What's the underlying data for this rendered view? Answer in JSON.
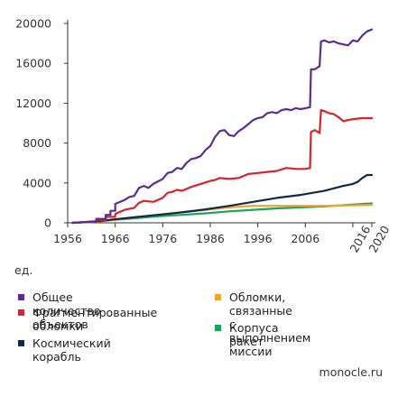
{
  "unit_label": "ед.",
  "source": "monocle.ru",
  "chart_data": {
    "type": "line",
    "ylim": [
      0,
      20000
    ],
    "xlim": [
      1956,
      2021
    ],
    "y_ticks": [
      0,
      4000,
      8000,
      12000,
      16000,
      20000
    ],
    "x_ticks": [
      1956,
      1966,
      1976,
      1986,
      1996,
      2006,
      2016,
      2020
    ],
    "x_tick_labels": [
      "1956",
      "1966",
      "1976",
      "1986",
      "1996",
      "2006",
      "2016",
      "2020"
    ],
    "rotated_x_ticks": [
      "2016",
      "2020"
    ],
    "grid": false,
    "legend": "bottom",
    "series": [
      {
        "name": "Общее количество объектов",
        "color": "#5b2d90",
        "x": [
          1957,
          1961,
          1962,
          1962,
          1964,
          1964,
          1965,
          1965,
          1966,
          1966,
          1968,
          1969,
          1970,
          1971,
          1972,
          1973,
          1974,
          1976,
          1977,
          1978,
          1979,
          1980,
          1981,
          1982,
          1983,
          1984,
          1985,
          1986,
          1987,
          1988,
          1989,
          1990,
          1991,
          1992,
          1993,
          1994,
          1995,
          1996,
          1997,
          1998,
          1999,
          2000,
          2001,
          2002,
          2003,
          2004,
          2005,
          2006,
          2007,
          2007.2,
          2008,
          2009,
          2009.3,
          2010,
          2011,
          2012,
          2013,
          2014,
          2015,
          2016,
          2017,
          2018,
          2019,
          2020
        ],
        "y": [
          0,
          100,
          100,
          400,
          400,
          800,
          800,
          1200,
          1200,
          1900,
          2300,
          2600,
          2700,
          3500,
          3700,
          3500,
          3900,
          4400,
          5000,
          5100,
          5500,
          5400,
          6000,
          6400,
          6500,
          6700,
          7300,
          7700,
          8600,
          9200,
          9300,
          8800,
          8700,
          9200,
          9500,
          9900,
          10300,
          10500,
          10600,
          11000,
          11100,
          11000,
          11300,
          11400,
          11300,
          11500,
          11400,
          11500,
          11600,
          15400,
          15400,
          15700,
          18200,
          18300,
          18100,
          18200,
          18000,
          17900,
          17800,
          18300,
          18200,
          18800,
          19200,
          19400
        ]
      },
      {
        "name": "Фрагментированные обломки",
        "color": "#d8232a",
        "x": [
          1957,
          1961,
          1962,
          1962,
          1964,
          1964,
          1966,
          1966,
          1968,
          1970,
          1971,
          1972,
          1974,
          1976,
          1977,
          1978,
          1979,
          1980,
          1982,
          1984,
          1986,
          1987,
          1988,
          1990,
          1992,
          1994,
          1996,
          1998,
          2000,
          2002,
          2004,
          2006,
          2007,
          2007.2,
          2008,
          2009,
          2009.3,
          2010,
          2011,
          2012,
          2013,
          2014,
          2016,
          2018,
          2020
        ],
        "y": [
          0,
          100,
          100,
          300,
          300,
          600,
          600,
          900,
          1300,
          1500,
          2000,
          2200,
          2100,
          2500,
          3000,
          3100,
          3300,
          3200,
          3600,
          3900,
          4200,
          4300,
          4500,
          4400,
          4500,
          4900,
          5000,
          5100,
          5200,
          5500,
          5400,
          5400,
          5500,
          9100,
          9300,
          9000,
          11300,
          11200,
          11000,
          10900,
          10600,
          10200,
          10400,
          10500,
          10500
        ]
      },
      {
        "name": "Космический корабль",
        "color": "#0e2a47",
        "x": [
          1957,
          1962,
          1966,
          1970,
          1975,
          1980,
          1985,
          1990,
          1995,
          2000,
          2005,
          2010,
          2014,
          2016,
          2017,
          2018,
          2019,
          2020
        ],
        "y": [
          0,
          150,
          350,
          550,
          800,
          1050,
          1350,
          1700,
          2100,
          2500,
          2800,
          3200,
          3700,
          3900,
          4100,
          4500,
          4800,
          4800
        ]
      },
      {
        "name": "Обломки, связанные с выполнением миссии",
        "color": "#f0a22e",
        "x": [
          1957,
          1962,
          1966,
          1970,
          1975,
          1980,
          1985,
          1990,
          1995,
          2000,
          2005,
          2010,
          2015,
          2020
        ],
        "y": [
          0,
          100,
          300,
          550,
          800,
          1050,
          1300,
          1550,
          1700,
          1700,
          1700,
          1700,
          1750,
          1800
        ]
      },
      {
        "name": "Корпуса ракет",
        "color": "#1aa55a",
        "x": [
          1957,
          1962,
          1966,
          1970,
          1975,
          1980,
          1985,
          1990,
          1995,
          2000,
          2005,
          2010,
          2015,
          2020
        ],
        "y": [
          0,
          150,
          300,
          450,
          650,
          800,
          950,
          1150,
          1300,
          1450,
          1550,
          1650,
          1800,
          1950
        ]
      }
    ]
  },
  "legend": [
    {
      "label": "Общее количество объектов",
      "color": "#5b2d90"
    },
    {
      "label": "Обломки, связанные\nс выполнением миссии",
      "color": "#f0a22e"
    },
    {
      "label": "Фрагментированные\nобломки",
      "color": "#d8232a"
    },
    {
      "label": "Корпуса ракет",
      "color": "#1aa55a"
    },
    {
      "label": "Космический корабль",
      "color": "#0e2a47"
    }
  ]
}
